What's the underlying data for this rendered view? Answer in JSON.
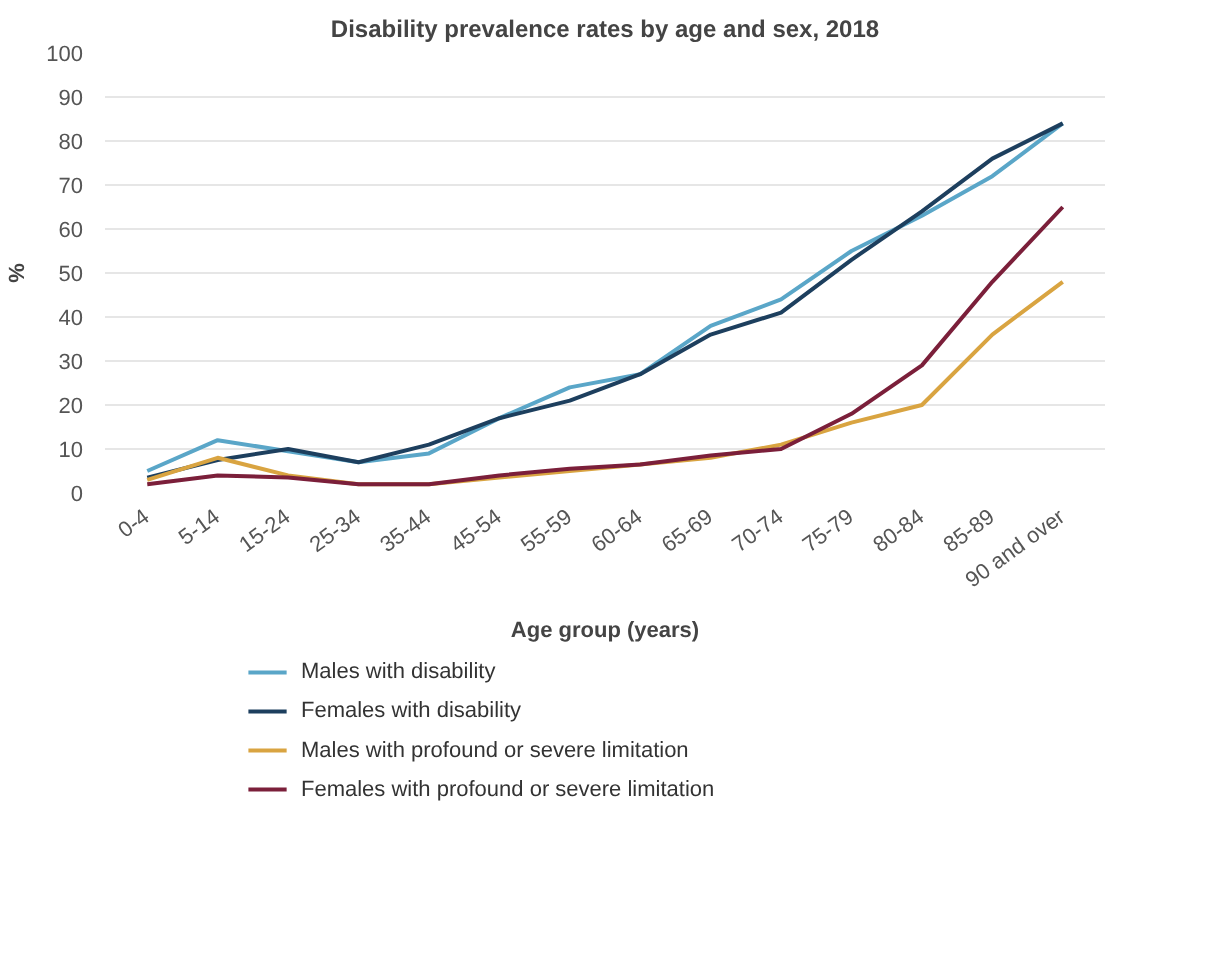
{
  "chart_data": {
    "type": "line",
    "title": "Disability prevalence rates by age and sex, 2018",
    "xlabel": "Age group (years)",
    "ylabel": "%",
    "categories": [
      "0-4",
      "5-14",
      "15-24",
      "25-34",
      "35-44",
      "45-54",
      "55-59",
      "60-64",
      "65-69",
      "70-74",
      "75-79",
      "80-84",
      "85-89",
      "90 and over"
    ],
    "series": [
      {
        "name": "Males with disability",
        "color": "#5aa6c8",
        "values": [
          5,
          12,
          9.5,
          7,
          9,
          17,
          24,
          27,
          38,
          44,
          55,
          63,
          72,
          84
        ]
      },
      {
        "name": "Females with disability",
        "color": "#1d3f5e",
        "values": [
          3.5,
          7.5,
          10,
          7,
          11,
          17,
          21,
          27,
          36,
          41,
          53,
          64,
          76,
          84
        ]
      },
      {
        "name": "Males with profound or severe limitation",
        "color": "#d9a441",
        "values": [
          3,
          8,
          4,
          2,
          2,
          3.5,
          5,
          6.5,
          8,
          11,
          16,
          20,
          36,
          48
        ]
      },
      {
        "name": "Females with profound or severe limitation",
        "color": "#7b1f3a",
        "values": [
          2,
          4,
          3.5,
          2,
          2,
          4,
          5.5,
          6.5,
          8.5,
          10,
          18,
          29,
          48,
          65
        ]
      }
    ],
    "ylim": [
      0,
      100
    ],
    "yticks": [
      0,
      10,
      20,
      30,
      40,
      50,
      60,
      70,
      80,
      90,
      100
    ],
    "grid": "y",
    "legend": "bottom",
    "marker": "none",
    "line_style": "solid"
  }
}
